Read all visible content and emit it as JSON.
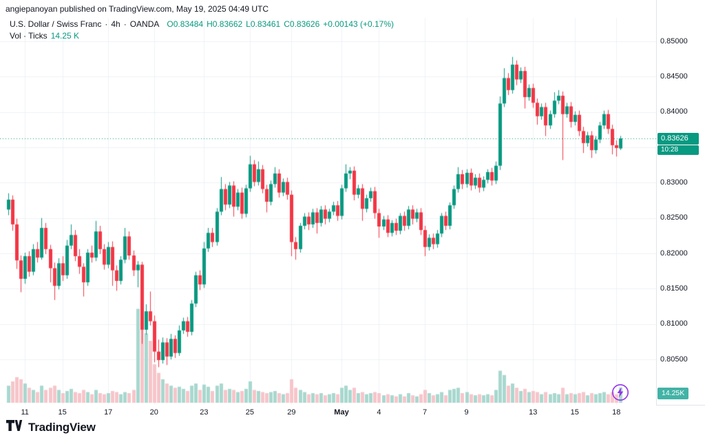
{
  "attribution": "angiepanoyan published on TradingView.com, May 19, 2025 04:49 UTC",
  "legend": {
    "symbol": "U.S. Dollar / Swiss Franc",
    "sep": "·",
    "interval": "4h",
    "exchange": "OANDA",
    "open": "O0.83484",
    "high": "H0.83662",
    "low": "L0.83461",
    "close": "C0.83626",
    "change": "+0.00143 (+0.17%)",
    "vol_label": "Vol · Ticks",
    "vol_value": "14.25 K"
  },
  "badges": {
    "price": "0.83626",
    "countdown": "10:28",
    "volume": "14.25K"
  },
  "footer": {
    "brand": "TradingView"
  },
  "colors": {
    "up": "#089981",
    "down": "#f23645",
    "vol_up": "#a8d8cf",
    "vol_down": "#f6c5ca",
    "grid": "#eef1f6",
    "axis_text": "#131722",
    "dotted": "#089981",
    "badge": "#089981",
    "vol_badge": "#42b3a6",
    "accent_purple": "#9333ea"
  },
  "chart_data": {
    "type": "candlestick",
    "symbol": "U.S. Dollar / Swiss Franc",
    "interval": "4h",
    "exchange": "OANDA",
    "ohlc_last": {
      "open": 0.83484,
      "high": 0.83662,
      "low": 0.83461,
      "close": 0.83626,
      "change": "+0.00143",
      "change_pct": "+0.17%"
    },
    "volume_last_k_ticks": 14.25,
    "price_axis": {
      "min": 0.805,
      "max": 0.85,
      "step": 0.005,
      "labels": [
        {
          "text": "0.85000",
          "price": 0.85
        },
        {
          "text": "0.84500",
          "price": 0.845
        },
        {
          "text": "0.84000",
          "price": 0.84
        },
        {
          "text": "0.83000",
          "price": 0.83
        },
        {
          "text": "0.82500",
          "price": 0.825
        },
        {
          "text": "0.82000",
          "price": 0.82
        },
        {
          "text": "0.81500",
          "price": 0.815
        },
        {
          "text": "0.81000",
          "price": 0.81
        },
        {
          "text": "0.80500",
          "price": 0.805
        }
      ]
    },
    "time_labels": [
      {
        "text": "11",
        "i": 4
      },
      {
        "text": "15",
        "i": 13
      },
      {
        "text": "17",
        "i": 24
      },
      {
        "text": "20",
        "i": 35
      },
      {
        "text": "23",
        "i": 47
      },
      {
        "text": "25",
        "i": 58
      },
      {
        "text": "29",
        "i": 68
      },
      {
        "text": "May",
        "i": 80,
        "bold": true
      },
      {
        "text": "4",
        "i": 89
      },
      {
        "text": "7",
        "i": 100
      },
      {
        "text": "9",
        "i": 110
      },
      {
        "text": "13",
        "i": 126
      },
      {
        "text": "15",
        "i": 136
      },
      {
        "text": "18",
        "i": 146
      }
    ],
    "columns": [
      "open",
      "high",
      "low",
      "close",
      "volume_k_ticks"
    ],
    "candles": [
      [
        0.8262,
        0.8285,
        0.8254,
        0.8276,
        16
      ],
      [
        0.8276,
        0.8282,
        0.8232,
        0.8241,
        20
      ],
      [
        0.8241,
        0.8249,
        0.8178,
        0.819,
        24
      ],
      [
        0.819,
        0.8197,
        0.8145,
        0.8164,
        22
      ],
      [
        0.8164,
        0.8201,
        0.8157,
        0.8196,
        18
      ],
      [
        0.8196,
        0.8203,
        0.8167,
        0.8174,
        14
      ],
      [
        0.8174,
        0.8213,
        0.8169,
        0.8206,
        12
      ],
      [
        0.8206,
        0.8216,
        0.8187,
        0.8194,
        10
      ],
      [
        0.8194,
        0.825,
        0.8191,
        0.8236,
        16
      ],
      [
        0.8236,
        0.8243,
        0.8199,
        0.8206,
        12
      ],
      [
        0.8206,
        0.8212,
        0.8159,
        0.8179,
        14
      ],
      [
        0.8179,
        0.8187,
        0.8134,
        0.8154,
        16
      ],
      [
        0.8154,
        0.8193,
        0.8149,
        0.8186,
        12
      ],
      [
        0.8186,
        0.8196,
        0.8161,
        0.8169,
        9
      ],
      [
        0.8169,
        0.8219,
        0.8164,
        0.8211,
        11
      ],
      [
        0.8211,
        0.8241,
        0.8206,
        0.8226,
        13
      ],
      [
        0.8226,
        0.8233,
        0.8189,
        0.8196,
        10
      ],
      [
        0.8196,
        0.8206,
        0.8171,
        0.8181,
        9
      ],
      [
        0.8181,
        0.8186,
        0.8139,
        0.8159,
        12
      ],
      [
        0.8159,
        0.8206,
        0.8154,
        0.8201,
        10
      ],
      [
        0.8201,
        0.8211,
        0.8187,
        0.8194,
        8
      ],
      [
        0.8194,
        0.8246,
        0.8189,
        0.8231,
        12
      ],
      [
        0.8231,
        0.8239,
        0.8199,
        0.8206,
        9
      ],
      [
        0.8206,
        0.8213,
        0.8177,
        0.8184,
        8
      ],
      [
        0.8184,
        0.8216,
        0.8179,
        0.8209,
        9
      ],
      [
        0.8209,
        0.8217,
        0.8154,
        0.8176,
        11
      ],
      [
        0.8176,
        0.8183,
        0.8147,
        0.8161,
        10
      ],
      [
        0.8161,
        0.8196,
        0.8156,
        0.8191,
        8
      ],
      [
        0.8191,
        0.8236,
        0.8186,
        0.8224,
        10
      ],
      [
        0.8224,
        0.8231,
        0.8191,
        0.8197,
        9
      ],
      [
        0.8197,
        0.8204,
        0.8168,
        0.8176,
        12
      ],
      [
        0.8176,
        0.8189,
        0.8152,
        0.8184,
        88
      ],
      [
        0.8184,
        0.8188,
        0.8072,
        0.8092,
        75
      ],
      [
        0.8092,
        0.8128,
        0.8085,
        0.8118,
        65
      ],
      [
        0.8118,
        0.8146,
        0.8098,
        0.8104,
        58
      ],
      [
        0.8104,
        0.8112,
        0.8046,
        0.8061,
        36
      ],
      [
        0.8061,
        0.8078,
        0.8039,
        0.8049,
        28
      ],
      [
        0.8049,
        0.8081,
        0.8044,
        0.8074,
        22
      ],
      [
        0.8074,
        0.808,
        0.8042,
        0.8054,
        18
      ],
      [
        0.8054,
        0.8086,
        0.805,
        0.8079,
        16
      ],
      [
        0.8079,
        0.8084,
        0.8052,
        0.8059,
        14
      ],
      [
        0.8059,
        0.8098,
        0.8055,
        0.8091,
        15
      ],
      [
        0.8091,
        0.8109,
        0.8086,
        0.8104,
        13
      ],
      [
        0.8104,
        0.811,
        0.8082,
        0.8089,
        11
      ],
      [
        0.8089,
        0.8134,
        0.8084,
        0.8129,
        16
      ],
      [
        0.8129,
        0.8174,
        0.8124,
        0.8169,
        18
      ],
      [
        0.8169,
        0.8176,
        0.8148,
        0.8156,
        12
      ],
      [
        0.8156,
        0.8216,
        0.8151,
        0.8207,
        17
      ],
      [
        0.8207,
        0.8236,
        0.8202,
        0.8229,
        15
      ],
      [
        0.8229,
        0.8236,
        0.8209,
        0.8216,
        11
      ],
      [
        0.8216,
        0.8264,
        0.8211,
        0.8259,
        16
      ],
      [
        0.8259,
        0.8308,
        0.8254,
        0.8291,
        18
      ],
      [
        0.8291,
        0.8298,
        0.8261,
        0.8269,
        12
      ],
      [
        0.8269,
        0.8301,
        0.8264,
        0.8296,
        13
      ],
      [
        0.8296,
        0.8302,
        0.8252,
        0.8266,
        12
      ],
      [
        0.8266,
        0.8291,
        0.8261,
        0.8286,
        10
      ],
      [
        0.8286,
        0.8293,
        0.8249,
        0.8256,
        11
      ],
      [
        0.8256,
        0.8297,
        0.8251,
        0.8292,
        13
      ],
      [
        0.8292,
        0.8338,
        0.8287,
        0.8326,
        20
      ],
      [
        0.8326,
        0.8332,
        0.8295,
        0.8301,
        12
      ],
      [
        0.8301,
        0.833,
        0.8296,
        0.8319,
        11
      ],
      [
        0.8319,
        0.8325,
        0.8285,
        0.8291,
        10
      ],
      [
        0.8291,
        0.8297,
        0.8258,
        0.8273,
        9
      ],
      [
        0.8273,
        0.8303,
        0.8268,
        0.8298,
        10
      ],
      [
        0.8298,
        0.8322,
        0.8293,
        0.8313,
        11
      ],
      [
        0.8313,
        0.8319,
        0.8279,
        0.8286,
        9
      ],
      [
        0.8286,
        0.8306,
        0.8281,
        0.8301,
        8
      ],
      [
        0.8301,
        0.8307,
        0.8276,
        0.8283,
        9
      ],
      [
        0.8283,
        0.8289,
        0.8196,
        0.8216,
        22
      ],
      [
        0.8216,
        0.8223,
        0.8191,
        0.8206,
        14
      ],
      [
        0.8206,
        0.8243,
        0.8201,
        0.8239,
        12
      ],
      [
        0.8239,
        0.8257,
        0.8234,
        0.8252,
        10
      ],
      [
        0.8252,
        0.8258,
        0.8233,
        0.8241,
        8
      ],
      [
        0.8241,
        0.8263,
        0.8236,
        0.8258,
        9
      ],
      [
        0.8258,
        0.8264,
        0.8228,
        0.8243,
        8
      ],
      [
        0.8243,
        0.8267,
        0.8238,
        0.8262,
        9
      ],
      [
        0.8262,
        0.8268,
        0.8241,
        0.8249,
        7
      ],
      [
        0.8249,
        0.8263,
        0.8244,
        0.8259,
        8
      ],
      [
        0.8259,
        0.8273,
        0.8254,
        0.8268,
        9
      ],
      [
        0.8268,
        0.8274,
        0.8246,
        0.8253,
        8
      ],
      [
        0.8253,
        0.8297,
        0.8248,
        0.8292,
        14
      ],
      [
        0.8292,
        0.8326,
        0.8287,
        0.8313,
        16
      ],
      [
        0.8313,
        0.8322,
        0.8305,
        0.8317,
        12
      ],
      [
        0.8317,
        0.8323,
        0.8275,
        0.8283,
        14
      ],
      [
        0.8283,
        0.8297,
        0.8278,
        0.8292,
        9
      ],
      [
        0.8292,
        0.8298,
        0.8246,
        0.8263,
        10
      ],
      [
        0.8263,
        0.8283,
        0.8258,
        0.8278,
        8
      ],
      [
        0.8278,
        0.8293,
        0.8273,
        0.8288,
        9
      ],
      [
        0.8288,
        0.8294,
        0.8249,
        0.8257,
        10
      ],
      [
        0.8257,
        0.8263,
        0.8222,
        0.8238,
        9
      ],
      [
        0.8238,
        0.8253,
        0.8233,
        0.8248,
        7
      ],
      [
        0.8248,
        0.8254,
        0.8223,
        0.8229,
        8
      ],
      [
        0.8229,
        0.8247,
        0.8224,
        0.8243,
        7
      ],
      [
        0.8243,
        0.8249,
        0.8226,
        0.8232,
        6
      ],
      [
        0.8232,
        0.8257,
        0.8227,
        0.8253,
        8
      ],
      [
        0.8253,
        0.8259,
        0.8232,
        0.8239,
        6
      ],
      [
        0.8239,
        0.8267,
        0.8234,
        0.8262,
        9
      ],
      [
        0.8262,
        0.8268,
        0.8241,
        0.8249,
        7
      ],
      [
        0.8249,
        0.8263,
        0.8244,
        0.8258,
        6
      ],
      [
        0.8258,
        0.8264,
        0.8226,
        0.8233,
        8
      ],
      [
        0.8233,
        0.8239,
        0.8196,
        0.8209,
        12
      ],
      [
        0.8209,
        0.8227,
        0.8204,
        0.8222,
        9
      ],
      [
        0.8222,
        0.8228,
        0.8206,
        0.8213,
        7
      ],
      [
        0.8213,
        0.8233,
        0.8208,
        0.8228,
        8
      ],
      [
        0.8228,
        0.8257,
        0.8223,
        0.8253,
        10
      ],
      [
        0.8253,
        0.8259,
        0.8233,
        0.8239,
        7
      ],
      [
        0.8239,
        0.8272,
        0.8234,
        0.8268,
        12
      ],
      [
        0.8268,
        0.8296,
        0.8263,
        0.8291,
        13
      ],
      [
        0.8291,
        0.8322,
        0.8286,
        0.8312,
        14
      ],
      [
        0.8312,
        0.8318,
        0.8291,
        0.8298,
        9
      ],
      [
        0.8298,
        0.8319,
        0.8293,
        0.8314,
        10
      ],
      [
        0.8314,
        0.832,
        0.8289,
        0.8296,
        8
      ],
      [
        0.8296,
        0.8312,
        0.8291,
        0.8307,
        7
      ],
      [
        0.8307,
        0.8313,
        0.8286,
        0.8293,
        8
      ],
      [
        0.8293,
        0.8309,
        0.8288,
        0.8304,
        7
      ],
      [
        0.8304,
        0.8319,
        0.8299,
        0.8315,
        8
      ],
      [
        0.8315,
        0.8321,
        0.8296,
        0.8303,
        7
      ],
      [
        0.8303,
        0.833,
        0.8298,
        0.8324,
        12
      ],
      [
        0.8324,
        0.8422,
        0.8318,
        0.8412,
        30
      ],
      [
        0.8412,
        0.8462,
        0.8407,
        0.8448,
        26
      ],
      [
        0.8448,
        0.8455,
        0.8424,
        0.8431,
        16
      ],
      [
        0.8431,
        0.8478,
        0.8426,
        0.8467,
        18
      ],
      [
        0.8467,
        0.8473,
        0.8438,
        0.8446,
        14
      ],
      [
        0.8446,
        0.8463,
        0.8441,
        0.8458,
        11
      ],
      [
        0.8458,
        0.8464,
        0.8405,
        0.8421,
        13
      ],
      [
        0.8421,
        0.8439,
        0.8416,
        0.8434,
        10
      ],
      [
        0.8434,
        0.844,
        0.8406,
        0.8413,
        11
      ],
      [
        0.8413,
        0.8419,
        0.8382,
        0.8394,
        10
      ],
      [
        0.8394,
        0.8412,
        0.8389,
        0.8407,
        8
      ],
      [
        0.8407,
        0.8413,
        0.8366,
        0.8381,
        10
      ],
      [
        0.8381,
        0.8402,
        0.8376,
        0.8397,
        8
      ],
      [
        0.8397,
        0.8428,
        0.8392,
        0.8416,
        9
      ],
      [
        0.8416,
        0.8431,
        0.8411,
        0.8423,
        8
      ],
      [
        0.8423,
        0.8429,
        0.8332,
        0.8397,
        14
      ],
      [
        0.8397,
        0.8413,
        0.8392,
        0.8408,
        8
      ],
      [
        0.8408,
        0.8414,
        0.8378,
        0.8386,
        9
      ],
      [
        0.8386,
        0.8401,
        0.8381,
        0.8396,
        8
      ],
      [
        0.8396,
        0.8402,
        0.8366,
        0.8373,
        9
      ],
      [
        0.8373,
        0.8379,
        0.8342,
        0.8356,
        10
      ],
      [
        0.8356,
        0.8372,
        0.8351,
        0.8367,
        7
      ],
      [
        0.8367,
        0.8373,
        0.8335,
        0.8346,
        9
      ],
      [
        0.8346,
        0.8366,
        0.8341,
        0.8361,
        8
      ],
      [
        0.8361,
        0.8386,
        0.8356,
        0.8381,
        9
      ],
      [
        0.8381,
        0.8402,
        0.8376,
        0.8397,
        10
      ],
      [
        0.8397,
        0.8403,
        0.8369,
        0.8376,
        8
      ],
      [
        0.8376,
        0.8382,
        0.834,
        0.8353,
        10
      ],
      [
        0.8353,
        0.836,
        0.8337,
        0.8349,
        8
      ],
      [
        0.83484,
        0.83662,
        0.83461,
        0.83626,
        14.25
      ]
    ]
  }
}
